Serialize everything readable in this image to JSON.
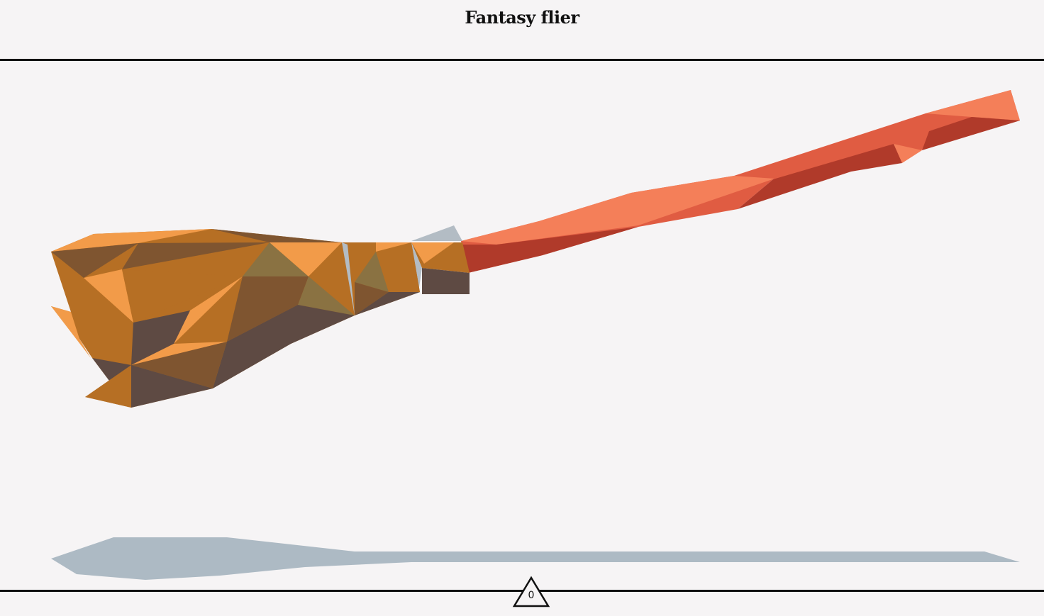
{
  "page": {
    "title": "Fantasy flier"
  },
  "viewer": {
    "model": "broom",
    "shadow_color": "#adbac4",
    "palette": {
      "handle_light": "#f47f59",
      "handle_mid": "#e05c42",
      "handle_dark": "#b03a2a",
      "bristle_light": "#f29b49",
      "bristle_mid": "#b66f24",
      "bristle_dark": "#7f5530",
      "bristle_shadow": "#5e4a43",
      "bristle_olive": "#8a7242",
      "binding_grey": "#b3bcc4"
    }
  },
  "marker": {
    "label": "0",
    "icon": "triangle-marker-icon"
  }
}
